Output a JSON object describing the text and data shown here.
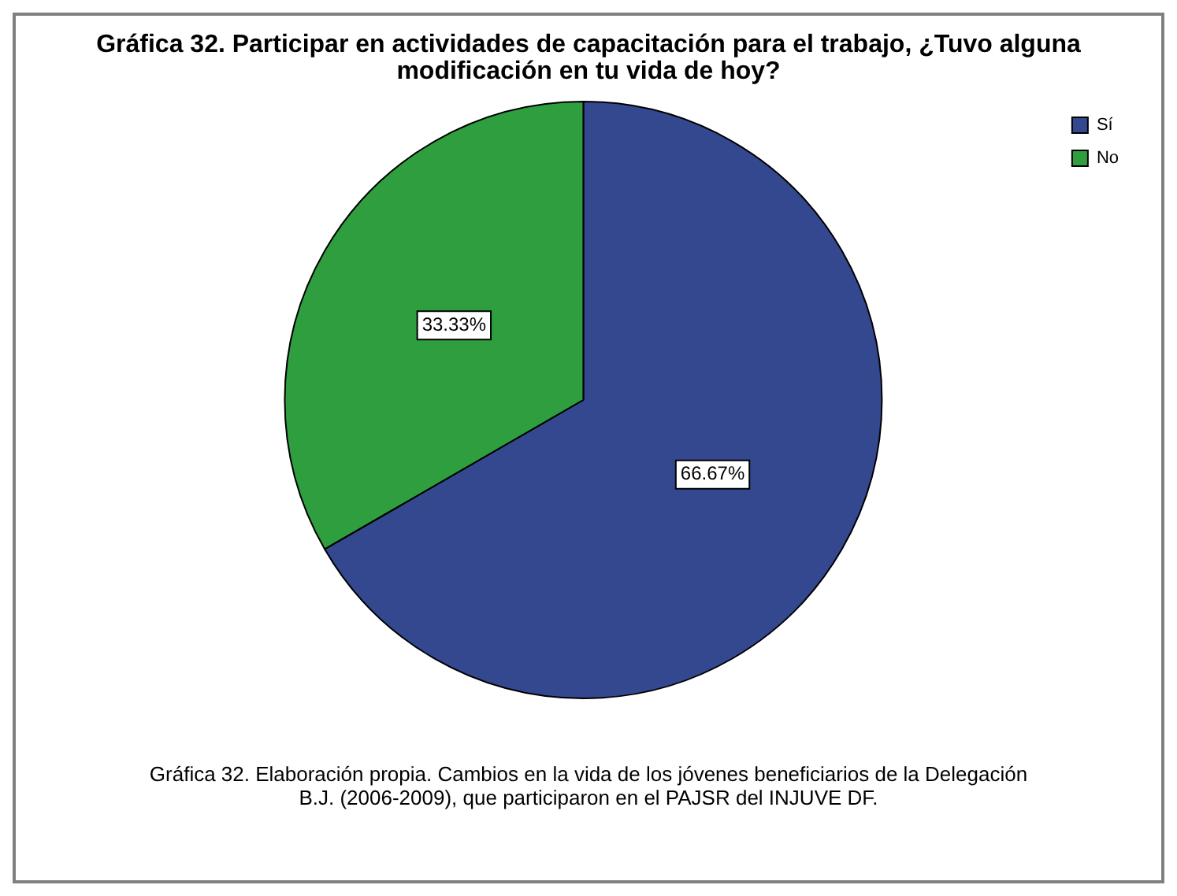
{
  "chart_data": {
    "type": "pie",
    "title": "Gráfica 32. Participar en actividades de capacitación para el trabajo, ¿Tuvo alguna modificación en tu vida de hoy?",
    "categories": [
      "Sí",
      "No"
    ],
    "values": [
      66.67,
      33.33
    ],
    "colors": [
      "#33488f",
      "#2f9e3e"
    ],
    "value_labels": [
      "66.67%",
      "33.33%"
    ],
    "legend": "top right",
    "annotations": [
      "Gráfica  32.   Elaboración propia.  Cambios en  la vida de los jóvenes beneficiarios de la Delegación B.J. (2006-2009), que participaron en el PAJSR del INJUVE DF."
    ]
  }
}
